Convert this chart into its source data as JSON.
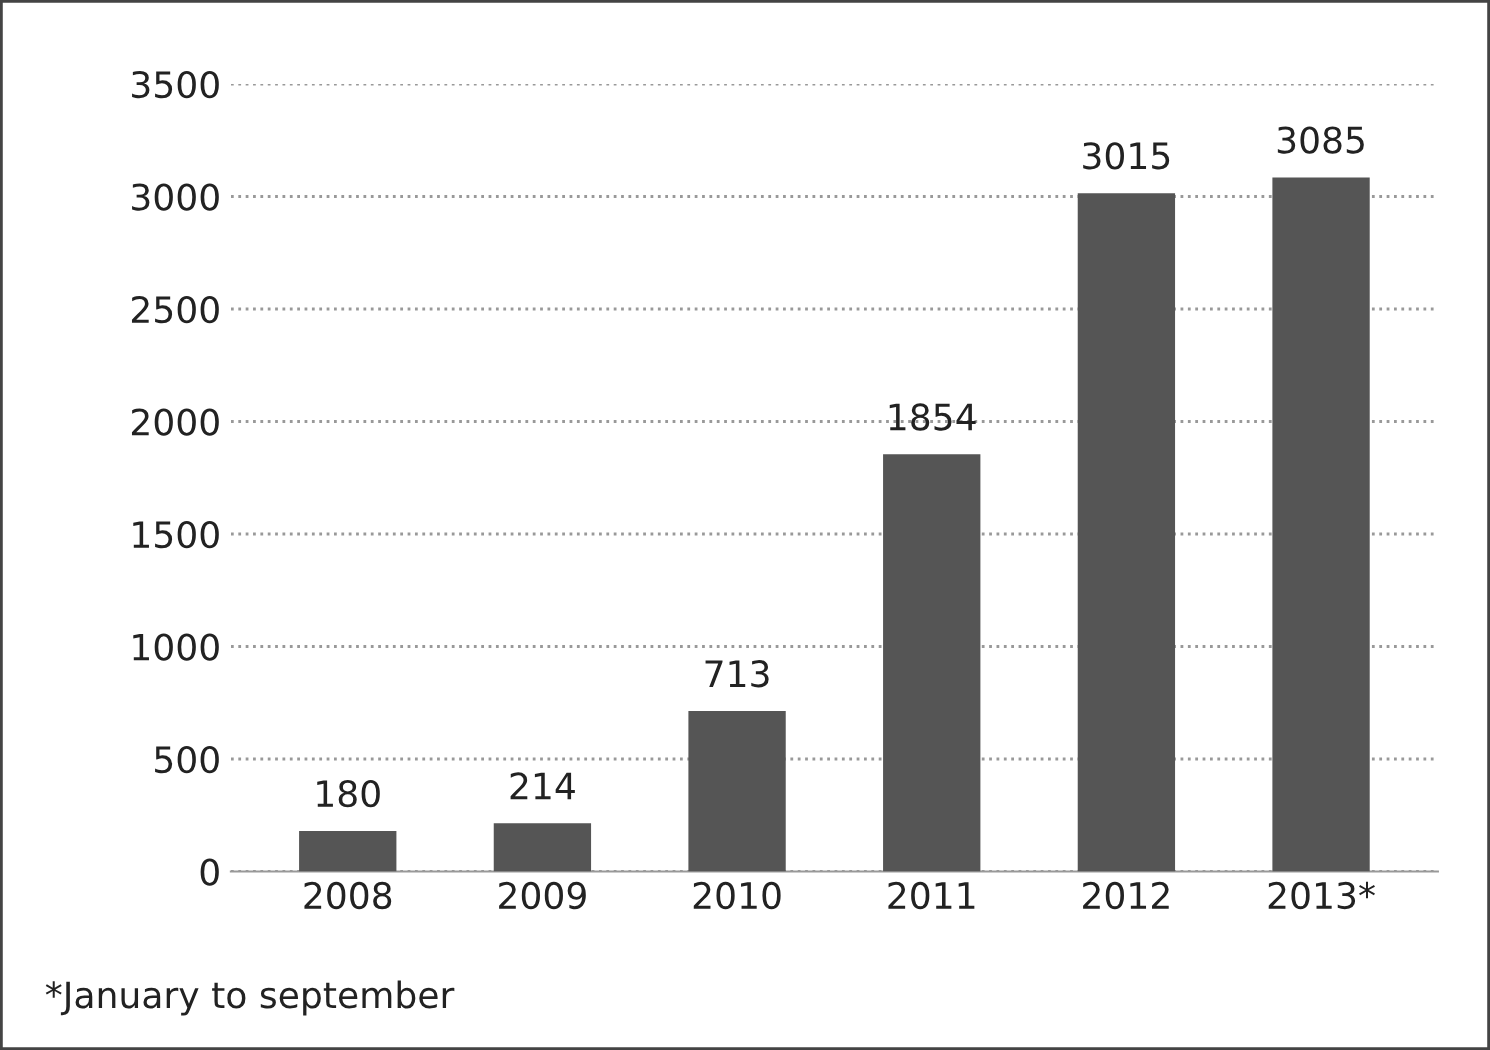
{
  "chart_data": {
    "type": "bar",
    "categories": [
      "2008",
      "2009",
      "2010",
      "2011",
      "2012",
      "2013*"
    ],
    "values": [
      180,
      214,
      713,
      1854,
      3015,
      3085
    ],
    "color": "#555555",
    "ylim": [
      0,
      3500
    ],
    "yticks": [
      0,
      500,
      1000,
      1500,
      2000,
      2500,
      3000,
      3500
    ],
    "grid": "y",
    "data_labels": true,
    "annotations": [
      "*January to september"
    ]
  }
}
